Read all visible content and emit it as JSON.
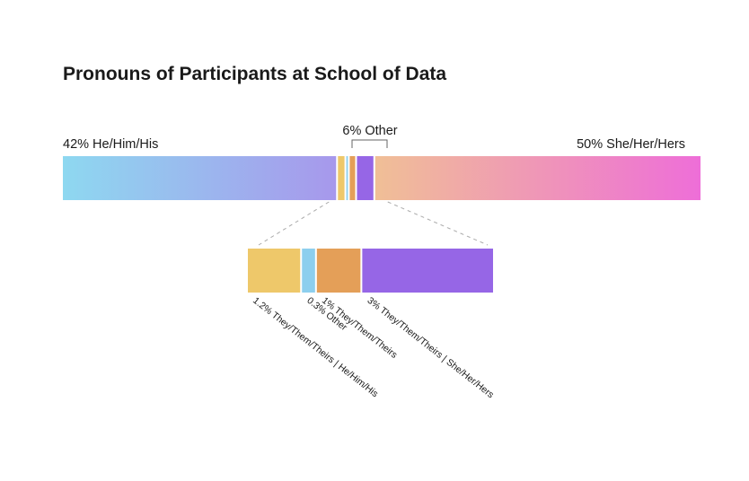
{
  "chart_data": {
    "type": "bar",
    "title": "Pronouns of Participants at School of Data",
    "main": [
      {
        "pct": 42,
        "label": "42% He/Him/His"
      },
      {
        "pct": 6,
        "label": "6% Other"
      },
      {
        "pct": 50,
        "label": "50% She/Her/Hers"
      }
    ],
    "detail": [
      {
        "pct": 1.2,
        "label": "1.2% They/Them/Theirs | He/Him/His",
        "color": "#EEC86A"
      },
      {
        "pct": 0.3,
        "label": "0.3% Other",
        "color": "#8DCFEE"
      },
      {
        "pct": 1,
        "label": "1% They/Them/Theirs",
        "color": "#E49F58"
      },
      {
        "pct": 3,
        "label": "3% They/Them/Theirs | She/Her/Hers",
        "color": "#9666E6"
      }
    ],
    "gradients": {
      "he": [
        "#8ED8F0",
        "#A798EC"
      ],
      "she": [
        "#F0BF96",
        "#EE6ED8"
      ]
    }
  }
}
